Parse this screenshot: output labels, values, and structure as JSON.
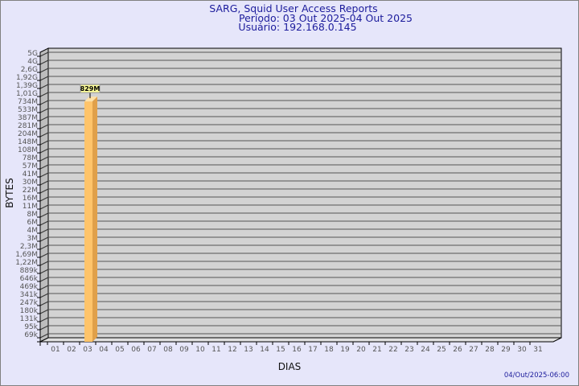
{
  "chart_data": {
    "type": "bar",
    "title": "SARG, Squid User Access Reports",
    "subtitle": [
      "Período: 03 Out 2025-04 Out 2025",
      "Usuário: 192.168.0.145"
    ],
    "xlabel": "DIAS",
    "ylabel": "BYTES",
    "yscale": "log",
    "grid": true,
    "categories": [
      "01",
      "02",
      "03",
      "04",
      "05",
      "06",
      "07",
      "08",
      "09",
      "10",
      "11",
      "12",
      "13",
      "14",
      "15",
      "16",
      "17",
      "18",
      "19",
      "20",
      "21",
      "22",
      "23",
      "24",
      "25",
      "26",
      "27",
      "28",
      "29",
      "30",
      "31"
    ],
    "y_tick_labels": [
      "5G",
      "4G",
      "2,6G",
      "1,92G",
      "1,39G",
      "1,01G",
      "734M",
      "533M",
      "387M",
      "281M",
      "204M",
      "148M",
      "108M",
      "78M",
      "57M",
      "41M",
      "30M",
      "22M",
      "16M",
      "11M",
      "8M",
      "6M",
      "4M",
      "3M",
      "2,3M",
      "1,69M",
      "1,22M",
      "889k",
      "646k",
      "469k",
      "341k",
      "247k",
      "180k",
      "131k",
      "95k",
      "69k"
    ],
    "bars": [
      {
        "category": "03",
        "value_label": "829M"
      }
    ],
    "colors": {
      "bar_front": "#ffc46a",
      "bar_side": "#e0a04a",
      "plot_bg": "#d3d3d3",
      "label_bg": "#ffff99"
    },
    "footer": "04/Out/2025-06:00"
  }
}
